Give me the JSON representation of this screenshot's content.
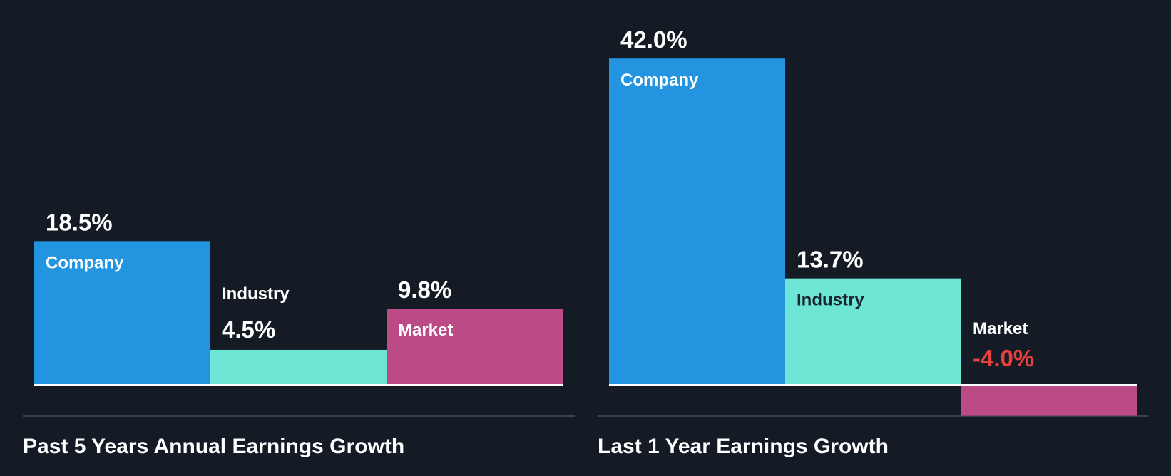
{
  "colors": {
    "background": "#151b24",
    "company": "#2394e0",
    "industry": "#6ee6d5",
    "market": "#bb4a86",
    "text_light": "#ffffff",
    "text_dark": "#1c2633",
    "negative": "#e5413f",
    "divider": "#3c424b",
    "baseline": "#ffffff"
  },
  "chart_data": [
    {
      "type": "bar",
      "title": "Past 5 Years Annual Earnings Growth",
      "categories": [
        "Company",
        "Industry",
        "Market"
      ],
      "values": [
        18.5,
        4.5,
        9.8
      ],
      "value_labels": [
        "18.5%",
        "4.5%",
        "9.8%"
      ],
      "unit": "%"
    },
    {
      "type": "bar",
      "title": "Last 1 Year Earnings Growth",
      "categories": [
        "Company",
        "Industry",
        "Market"
      ],
      "values": [
        42.0,
        13.7,
        -4.0
      ],
      "value_labels": [
        "42.0%",
        "13.7%",
        "-4.0%"
      ],
      "unit": "%"
    }
  ]
}
